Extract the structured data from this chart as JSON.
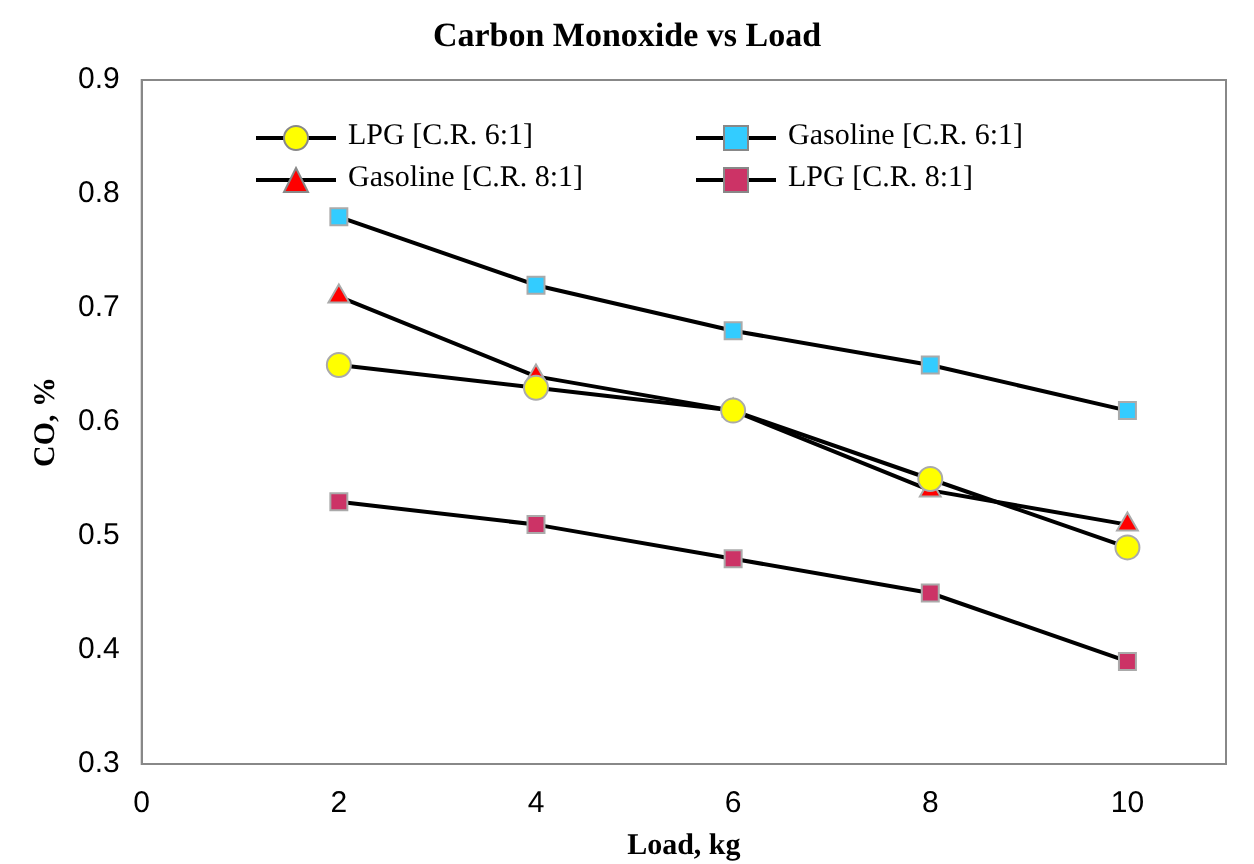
{
  "chart_data": {
    "type": "line",
    "title": "Carbon Monoxide vs Load",
    "xlabel": "Load, kg",
    "ylabel": "CO, %",
    "x": [
      2,
      4,
      6,
      8,
      10
    ],
    "series": [
      {
        "name": "LPG [C.R. 6:1]",
        "color": "#ffff00",
        "marker": "circle",
        "values": [
          0.65,
          0.63,
          0.61,
          0.55,
          0.49
        ]
      },
      {
        "name": "Gasoline [C.R. 6:1]",
        "color": "#33ccff",
        "marker": "square",
        "values": [
          0.78,
          0.72,
          0.68,
          0.65,
          0.61
        ]
      },
      {
        "name": "Gasoline [C.R. 8:1]",
        "color": "#ff0000",
        "marker": "triangle",
        "values": [
          0.71,
          0.64,
          0.61,
          0.54,
          0.51
        ]
      },
      {
        "name": "LPG [C.R. 8:1]",
        "color": "#cc3366",
        "marker": "square",
        "values": [
          0.53,
          0.51,
          0.48,
          0.45,
          0.39
        ]
      }
    ],
    "xlim": [
      0,
      11
    ],
    "xticks": [
      0,
      2,
      4,
      6,
      8,
      10
    ],
    "ylim": [
      0.3,
      0.9
    ],
    "yticks": [
      0.3,
      0.4,
      0.5,
      0.6,
      0.7,
      0.8,
      0.9
    ],
    "grid": false,
    "legend": "top",
    "line_style": "solid"
  }
}
